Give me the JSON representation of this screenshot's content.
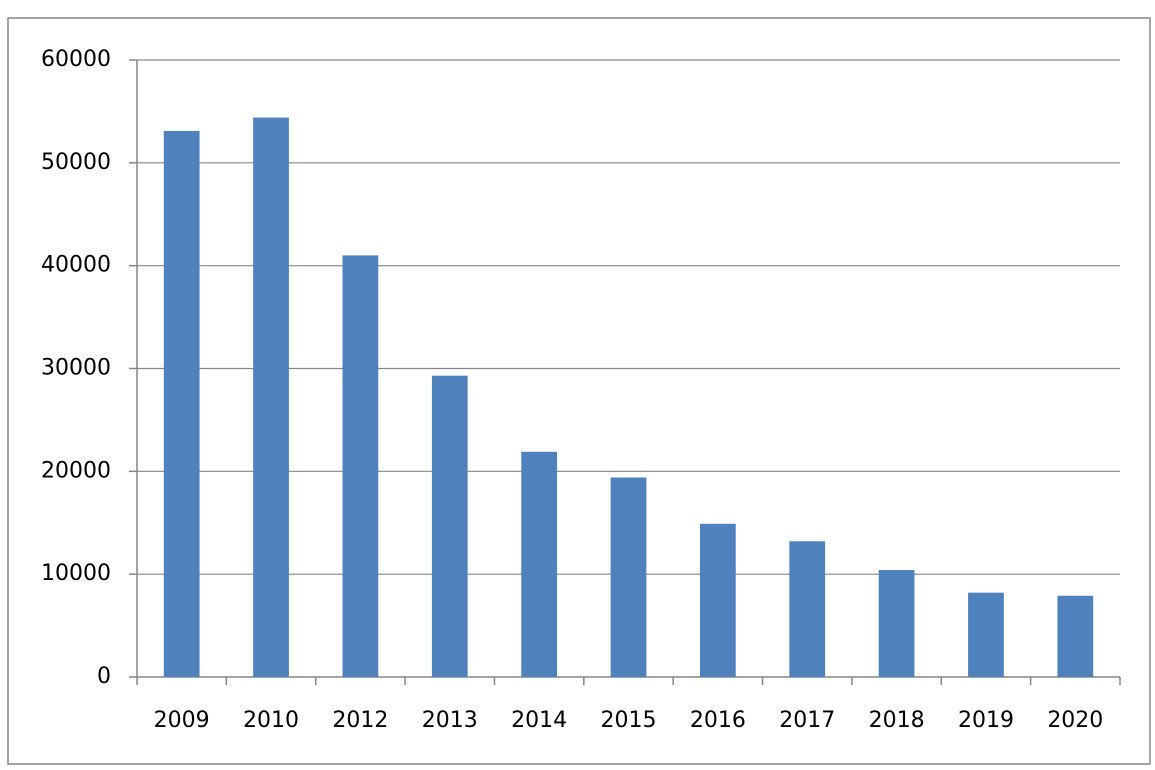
{
  "chart_data": {
    "type": "bar",
    "categories": [
      "2009",
      "2010",
      "2012",
      "2013",
      "2014",
      "2015",
      "2016",
      "2017",
      "2018",
      "2019",
      "2020"
    ],
    "values": [
      53100,
      54400,
      41000,
      29300,
      21900,
      19400,
      14900,
      13200,
      10400,
      8200,
      7900
    ],
    "color": "#4f81bd",
    "ylim": [
      0,
      60000
    ],
    "yticks": [
      0,
      10000,
      20000,
      30000,
      40000,
      50000,
      60000
    ],
    "grid": true
  }
}
